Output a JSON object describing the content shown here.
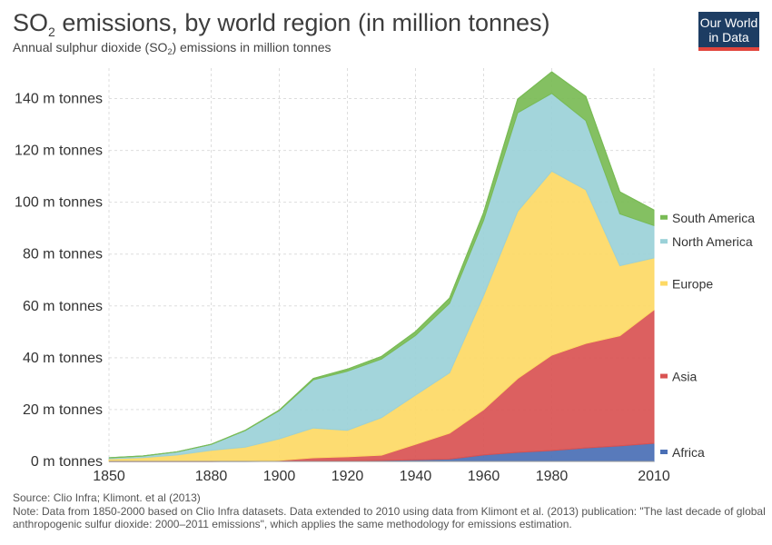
{
  "title": {
    "main": "SO",
    "sub": "2",
    "rest": " emissions, by world region (in million tonnes)"
  },
  "subtitle": {
    "pre": "Annual sulphur dioxide (SO",
    "sub": "2",
    "post": ") emissions in million tonnes"
  },
  "logo": {
    "line1": "Our World",
    "line2": "in Data"
  },
  "footer": {
    "source": "Source: Clio Infra; Klimont. et al (2013)",
    "note": "Note: Data from 1850-2000 based on Clio Infra datasets. Data extended to 2010 using data from Klimont et al. (2013) publication: \"The last decade of global anthropogenic sulfur dioxide: 2000–2011 emissions\", which applies the same methodology for emissions estimation."
  },
  "colors": {
    "Africa": "#4a6fb5",
    "Asia": "#d95352",
    "Europe": "#fdd965",
    "North America": "#9bd1d8",
    "South America": "#79bb55",
    "grid": "#dddddd",
    "axis_text": "#333333"
  },
  "chart_data": {
    "type": "area",
    "stacked": true,
    "x": [
      1850,
      1860,
      1870,
      1880,
      1890,
      1900,
      1910,
      1920,
      1930,
      1940,
      1950,
      1960,
      1970,
      1980,
      1990,
      2000,
      2010
    ],
    "series": [
      {
        "name": "Africa",
        "values": [
          0,
          0,
          0,
          0,
          0,
          0.1,
          0.2,
          0.3,
          0.4,
          0.6,
          0.9,
          2.5,
          3.5,
          4.2,
          5.2,
          6.0,
          7.0
        ]
      },
      {
        "name": "Asia",
        "values": [
          0,
          0,
          0,
          0,
          0.1,
          0.3,
          1.2,
          1.5,
          2.0,
          6.0,
          10.0,
          17.5,
          28.5,
          36.8,
          40.3,
          42.5,
          51.5
        ]
      },
      {
        "name": "Europe",
        "values": [
          1.0,
          1.5,
          2.5,
          4.3,
          5.4,
          8.3,
          11.5,
          10.2,
          14.5,
          19.0,
          23.3,
          44.0,
          64.5,
          71.0,
          59.3,
          27.0,
          20.0
        ]
      },
      {
        "name": "North America",
        "values": [
          0.4,
          0.6,
          1.2,
          2.3,
          6.4,
          10.9,
          18.6,
          22.8,
          22.6,
          23.0,
          26.8,
          29.0,
          38.0,
          30.0,
          26.7,
          20.0,
          12.5
        ]
      },
      {
        "name": "South America",
        "values": [
          0,
          0,
          0,
          0,
          0.1,
          0.2,
          0.5,
          0.8,
          1.0,
          1.5,
          2.0,
          3.0,
          5.3,
          8.3,
          9.3,
          8.5,
          6.0
        ]
      }
    ],
    "xlim": [
      1850,
      2010
    ],
    "ylim": [
      0,
      150
    ],
    "x_ticks": [
      "1850",
      "1880",
      "1900",
      "1920",
      "1940",
      "1960",
      "1980",
      "2010"
    ],
    "y_ticks": [
      "0 m tonnes",
      "20 m tonnes",
      "40 m tonnes",
      "60 m tonnes",
      "80 m tonnes",
      "100 m tonnes",
      "120 m tonnes",
      "140 m tonnes"
    ],
    "legend": [
      "South America",
      "North America",
      "Europe",
      "Asia",
      "Africa"
    ],
    "legend_placement": "right",
    "grid": true
  }
}
